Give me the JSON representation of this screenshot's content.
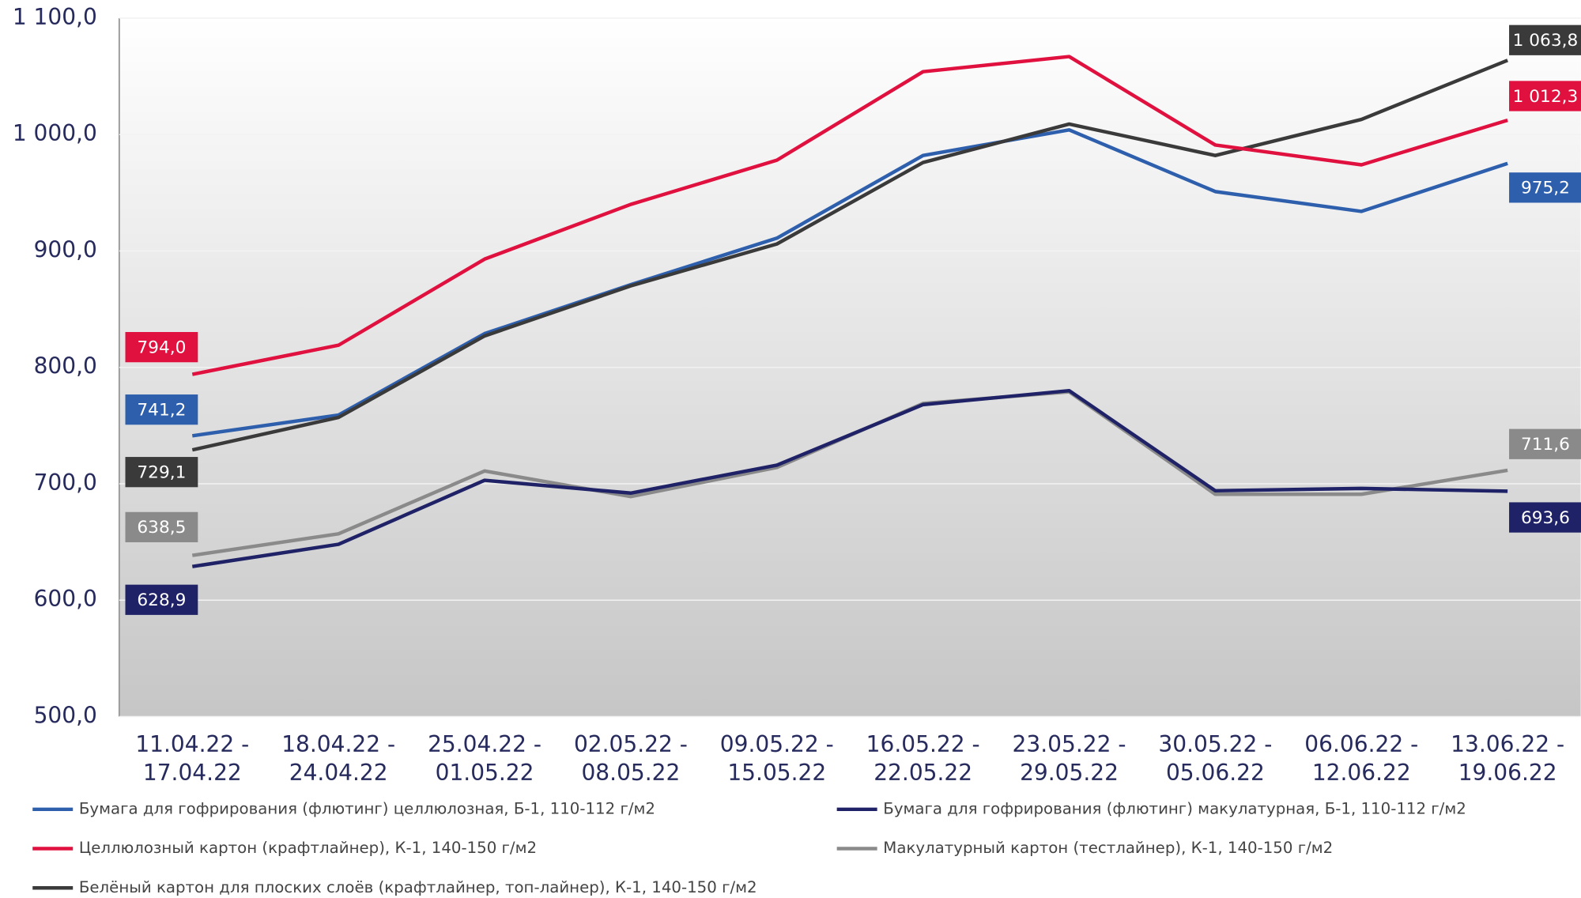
{
  "chart_data": {
    "type": "line",
    "categories": [
      "11.04.22 -\n17.04.22",
      "18.04.22 -\n24.04.22",
      "25.04.22 -\n01.05.22",
      "02.05.22 -\n08.05.22",
      "09.05.22 -\n15.05.22",
      "16.05.22 -\n22.05.22",
      "23.05.22 -\n29.05.22",
      "30.05.22 -\n05.06.22",
      "06.06.22 -\n12.06.22",
      "13.06.22 -\n19.06.22"
    ],
    "ylim": [
      500,
      1100
    ],
    "yticks": [
      {
        "value": 500,
        "label": "500,0"
      },
      {
        "value": 600,
        "label": "600,0"
      },
      {
        "value": 700,
        "label": "700,0"
      },
      {
        "value": 800,
        "label": "800,0"
      },
      {
        "value": 900,
        "label": "900,0"
      },
      {
        "value": 1000,
        "label": "1 000,0"
      },
      {
        "value": 1100,
        "label": "1 100,0"
      }
    ],
    "grid": true,
    "series": [
      {
        "name": "Бумага для гофрирования (флютинг) целлюлозная, Б-1, 110-112 г/м2",
        "color": "#2e5fad",
        "values": [
          741.2,
          759,
          829,
          871,
          911,
          982,
          1004,
          951,
          934,
          975.2
        ],
        "value_labels": [
          "741,2",
          null,
          null,
          null,
          null,
          null,
          null,
          null,
          null,
          "975,2"
        ]
      },
      {
        "name": "Бумага для гофрирования (флютинг) макулатурная, Б-1, 110-112 г/м2",
        "color": "#1f2266",
        "values": [
          628.9,
          648,
          703,
          692,
          716,
          768,
          780,
          694,
          696,
          693.6
        ],
        "value_labels": [
          "628,9",
          null,
          null,
          null,
          null,
          null,
          null,
          null,
          null,
          "693,6"
        ]
      },
      {
        "name": "Целлюлозный картон (крафтлайнер), К-1, 140-150 г/м2",
        "color": "#e0103f",
        "values": [
          794.0,
          819,
          893,
          940,
          978,
          1054,
          1067,
          991,
          974,
          1012.3
        ],
        "value_labels": [
          "794,0",
          null,
          null,
          null,
          null,
          null,
          null,
          null,
          null,
          "1 012,3"
        ]
      },
      {
        "name": "Макулатурный картон (тестлайнер), К-1, 140-150 г/м2",
        "color": "#8a8a8a",
        "values": [
          638.5,
          657,
          711,
          689,
          714,
          769,
          779,
          691,
          691,
          711.6
        ],
        "value_labels": [
          "638,5",
          null,
          null,
          null,
          null,
          null,
          null,
          null,
          null,
          "711,6"
        ]
      },
      {
        "name": "Белёный картон для плоских слоёв (крафтлайнер, топ-лайнер), К-1, 140-150 г/м2",
        "color": "#3a3a3a",
        "values": [
          729.1,
          757,
          827,
          870,
          906,
          976,
          1009,
          982,
          1013,
          1063.8
        ],
        "value_labels": [
          "729,1",
          null,
          null,
          null,
          null,
          null,
          null,
          null,
          null,
          "1 063,8"
        ]
      }
    ]
  }
}
